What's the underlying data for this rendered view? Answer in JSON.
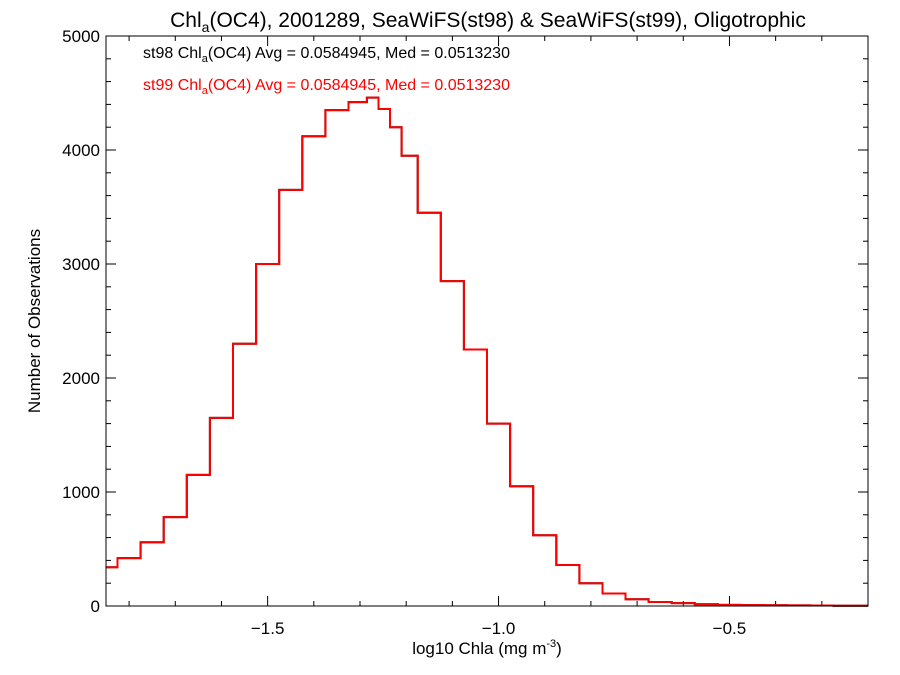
{
  "chart_data": {
    "type": "step-line",
    "title": {
      "pre": "Chl",
      "sub": "a",
      "post": "(OC4), 2001289, SeaWiFS(st98) & SeaWiFS(st99), Oligotrophic"
    },
    "xlabel": {
      "pre": "log10 Chla (mg m",
      "sup": "-3",
      "post": ")"
    },
    "ylabel": "Number of Observations",
    "xlim": [
      -1.85,
      -0.2
    ],
    "ylim": [
      0,
      5000
    ],
    "xticks": [
      -1.5,
      -1.0,
      -0.5
    ],
    "xtick_labels": [
      "−1.5",
      "−1.0",
      "−0.5"
    ],
    "yticks": [
      0,
      1000,
      2000,
      3000,
      4000,
      5000
    ],
    "ytick_labels": [
      "0",
      "1000",
      "2000",
      "3000",
      "4000",
      "5000"
    ],
    "legend": [
      {
        "series": "st98",
        "color": "#000000",
        "pre": "st98 Chl",
        "sub": "a",
        "post": "(OC4) Avg = 0.0584945, Med = 0.0513230"
      },
      {
        "series": "st99",
        "color": "#ff0000",
        "pre": "st99 Chl",
        "sub": "a",
        "post": "(OC4) Avg = 0.0584945, Med = 0.0513230"
      }
    ],
    "x": [
      -1.85,
      -1.8,
      -1.75,
      -1.7,
      -1.65,
      -1.6,
      -1.55,
      -1.5,
      -1.45,
      -1.4,
      -1.35,
      -1.3,
      -1.27,
      -1.25,
      -1.22,
      -1.2,
      -1.15,
      -1.1,
      -1.05,
      -1.0,
      -0.95,
      -0.9,
      -0.85,
      -0.8,
      -0.75,
      -0.7,
      -0.65,
      -0.6,
      -0.55,
      -0.5,
      -0.45,
      -0.4,
      -0.35,
      -0.3,
      -0.25,
      -0.2
    ],
    "series": [
      {
        "name": "st98",
        "color": "#000000",
        "values": [
          340,
          420,
          560,
          780,
          1150,
          1650,
          2300,
          3000,
          3650,
          4120,
          4350,
          4420,
          4460,
          4360,
          4200,
          3950,
          3450,
          2850,
          2250,
          1600,
          1050,
          620,
          360,
          200,
          110,
          60,
          35,
          25,
          15,
          10,
          8,
          6,
          5,
          4,
          3,
          2
        ]
      },
      {
        "name": "st99",
        "color": "#ff0000",
        "values": [
          340,
          420,
          560,
          780,
          1150,
          1650,
          2300,
          3000,
          3650,
          4120,
          4350,
          4420,
          4460,
          4360,
          4200,
          3950,
          3450,
          2850,
          2250,
          1600,
          1050,
          620,
          360,
          200,
          110,
          60,
          35,
          25,
          15,
          10,
          8,
          6,
          5,
          4,
          3,
          2
        ]
      }
    ]
  }
}
